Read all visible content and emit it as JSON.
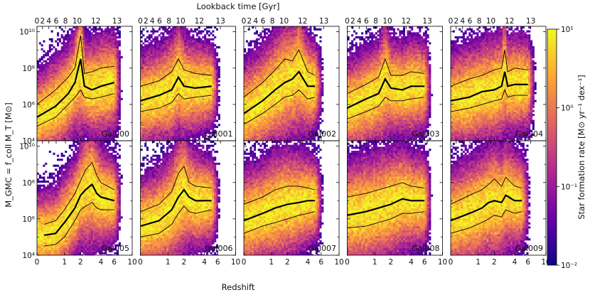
{
  "chart_data": {
    "type": "heatmap",
    "figure": {
      "top_axis_label": "Lookback time [Gyr]",
      "bottom_axis_label": "Redshift",
      "ylabel": "M_GMC = f_coll M_T [M⊙]",
      "colorbar_label": "Star formation rate [M⊙ yr⁻¹ dex⁻¹]",
      "colorbar_range": [
        0.01,
        10
      ],
      "colorbar_ticks": [
        "10¹",
        "10⁰",
        "10⁻¹",
        "10⁻²"
      ],
      "colormap": [
        "#0d0887",
        "#6a00a8",
        "#b12a90",
        "#e16462",
        "#fca636",
        "#f0f921"
      ],
      "line_color": "#000000"
    },
    "xaxis": {
      "range": [
        0,
        10
      ],
      "ticks": [
        "0",
        "1",
        "2",
        "4",
        "6",
        "10"
      ],
      "tick_values": [
        0,
        1,
        2,
        4,
        6,
        10
      ]
    },
    "top_axis": {
      "ticks": [
        "0",
        "2",
        "4",
        "6",
        "8",
        "10",
        "12",
        "13"
      ],
      "tick_redshifts": [
        0,
        0.15,
        0.35,
        0.62,
        1.05,
        1.75,
        3.4,
        6.5
      ]
    },
    "yaxis": {
      "range": [
        4,
        10.3
      ],
      "scale": "log10",
      "ticks": [
        "10⁴",
        "10⁶",
        "10⁸",
        "10¹⁰"
      ],
      "tick_values": [
        4,
        6,
        8,
        10
      ]
    },
    "panels": [
      {
        "name": "Gal000",
        "zmax": 6.0,
        "median": [
          [
            0.0,
            5.3
          ],
          [
            0.6,
            5.9
          ],
          [
            1.2,
            6.6
          ],
          [
            1.6,
            7.2
          ],
          [
            2.0,
            8.5
          ],
          [
            2.3,
            7.0
          ],
          [
            3.0,
            6.8
          ],
          [
            4.0,
            7.0
          ],
          [
            6.0,
            7.2
          ]
        ],
        "upper": [
          [
            0.0,
            6.0
          ],
          [
            0.6,
            6.8
          ],
          [
            1.2,
            7.5
          ],
          [
            1.6,
            8.0
          ],
          [
            2.0,
            9.8
          ],
          [
            2.3,
            7.7
          ],
          [
            3.0,
            7.8
          ],
          [
            4.0,
            8.0
          ],
          [
            6.0,
            8.1
          ]
        ],
        "lower": [
          [
            0.0,
            4.8
          ],
          [
            0.6,
            5.3
          ],
          [
            1.2,
            6.0
          ],
          [
            1.6,
            6.4
          ],
          [
            2.0,
            6.8
          ],
          [
            2.3,
            6.4
          ],
          [
            3.0,
            6.3
          ],
          [
            4.0,
            6.4
          ],
          [
            6.0,
            6.6
          ]
        ]
      },
      {
        "name": "Gal001",
        "zmax": 5.0,
        "median": [
          [
            0.0,
            6.2
          ],
          [
            0.6,
            6.5
          ],
          [
            1.2,
            6.8
          ],
          [
            1.6,
            7.5
          ],
          [
            2.0,
            7.0
          ],
          [
            3.0,
            6.9
          ],
          [
            5.0,
            7.0
          ]
        ],
        "upper": [
          [
            0.0,
            7.0
          ],
          [
            0.6,
            7.3
          ],
          [
            1.2,
            7.8
          ],
          [
            1.6,
            8.5
          ],
          [
            2.0,
            7.9
          ],
          [
            3.0,
            7.7
          ],
          [
            5.0,
            7.6
          ]
        ],
        "lower": [
          [
            0.0,
            5.6
          ],
          [
            0.6,
            5.8
          ],
          [
            1.2,
            6.1
          ],
          [
            1.6,
            6.6
          ],
          [
            2.0,
            6.3
          ],
          [
            3.0,
            6.4
          ],
          [
            5.0,
            6.5
          ]
        ]
      },
      {
        "name": "Gal002",
        "zmax": 5.0,
        "median": [
          [
            0.0,
            5.5
          ],
          [
            0.6,
            6.2
          ],
          [
            1.2,
            6.8
          ],
          [
            1.8,
            7.2
          ],
          [
            2.4,
            7.4
          ],
          [
            3.0,
            7.8
          ],
          [
            4.0,
            7.0
          ],
          [
            5.0,
            7.0
          ]
        ],
        "upper": [
          [
            0.0,
            6.4
          ],
          [
            0.6,
            7.2
          ],
          [
            1.2,
            7.9
          ],
          [
            1.8,
            8.5
          ],
          [
            2.4,
            8.4
          ],
          [
            3.0,
            9.0
          ],
          [
            4.0,
            7.8
          ],
          [
            5.0,
            7.6
          ]
        ],
        "lower": [
          [
            0.0,
            4.9
          ],
          [
            0.6,
            5.5
          ],
          [
            1.2,
            6.0
          ],
          [
            1.8,
            6.4
          ],
          [
            2.4,
            6.5
          ],
          [
            3.0,
            6.8
          ],
          [
            4.0,
            6.3
          ],
          [
            5.0,
            6.4
          ]
        ]
      },
      {
        "name": "Gal003",
        "zmax": 6.0,
        "median": [
          [
            0.0,
            5.8
          ],
          [
            0.6,
            6.3
          ],
          [
            1.2,
            6.6
          ],
          [
            1.6,
            7.4
          ],
          [
            2.0,
            6.9
          ],
          [
            3.0,
            6.8
          ],
          [
            4.0,
            7.0
          ],
          [
            6.0,
            7.0
          ]
        ],
        "upper": [
          [
            0.0,
            6.6
          ],
          [
            0.6,
            7.1
          ],
          [
            1.2,
            7.5
          ],
          [
            1.6,
            8.5
          ],
          [
            2.0,
            7.6
          ],
          [
            3.0,
            7.6
          ],
          [
            4.0,
            7.8
          ],
          [
            6.0,
            7.7
          ]
        ],
        "lower": [
          [
            0.0,
            5.2
          ],
          [
            0.6,
            5.6
          ],
          [
            1.2,
            5.9
          ],
          [
            1.6,
            6.4
          ],
          [
            2.0,
            6.2
          ],
          [
            3.0,
            6.2
          ],
          [
            4.0,
            6.3
          ],
          [
            6.0,
            6.4
          ]
        ]
      },
      {
        "name": "Gal004",
        "zmax": 6.0,
        "median": [
          [
            0.0,
            6.2
          ],
          [
            0.6,
            6.4
          ],
          [
            1.2,
            6.7
          ],
          [
            2.0,
            6.8
          ],
          [
            2.6,
            7.0
          ],
          [
            2.9,
            7.8
          ],
          [
            3.2,
            7.0
          ],
          [
            4.0,
            7.1
          ],
          [
            6.0,
            7.1
          ]
        ],
        "upper": [
          [
            0.0,
            7.0
          ],
          [
            0.6,
            7.4
          ],
          [
            1.2,
            7.6
          ],
          [
            2.0,
            7.9
          ],
          [
            2.6,
            8.0
          ],
          [
            2.9,
            9.0
          ],
          [
            3.2,
            7.8
          ],
          [
            4.0,
            8.0
          ],
          [
            6.0,
            7.9
          ]
        ],
        "lower": [
          [
            0.0,
            5.6
          ],
          [
            0.6,
            5.8
          ],
          [
            1.2,
            6.0
          ],
          [
            2.0,
            6.2
          ],
          [
            2.6,
            6.3
          ],
          [
            2.9,
            6.8
          ],
          [
            3.2,
            6.4
          ],
          [
            4.0,
            6.5
          ],
          [
            6.0,
            6.5
          ]
        ]
      },
      {
        "name": "Gal005",
        "zmax": 6.0,
        "median": [
          [
            0.2,
            5.1
          ],
          [
            0.6,
            5.2
          ],
          [
            1.0,
            5.8
          ],
          [
            1.6,
            6.6
          ],
          [
            2.0,
            7.3
          ],
          [
            2.4,
            7.6
          ],
          [
            3.0,
            7.9
          ],
          [
            3.5,
            7.4
          ],
          [
            4.0,
            7.2
          ],
          [
            6.0,
            7.0
          ]
        ],
        "upper": [
          [
            0.2,
            5.7
          ],
          [
            0.6,
            5.9
          ],
          [
            1.0,
            6.5
          ],
          [
            1.6,
            7.4
          ],
          [
            2.0,
            8.1
          ],
          [
            2.4,
            8.7
          ],
          [
            3.0,
            9.1
          ],
          [
            3.5,
            8.4
          ],
          [
            4.0,
            8.0
          ],
          [
            6.0,
            7.6
          ]
        ],
        "lower": [
          [
            0.2,
            4.5
          ],
          [
            0.6,
            4.6
          ],
          [
            1.0,
            5.0
          ],
          [
            1.6,
            5.9
          ],
          [
            2.0,
            6.5
          ],
          [
            2.4,
            6.7
          ],
          [
            3.0,
            6.9
          ],
          [
            3.5,
            6.6
          ],
          [
            4.0,
            6.5
          ],
          [
            6.0,
            6.5
          ]
        ]
      },
      {
        "name": "Gal006",
        "zmax": 5.0,
        "median": [
          [
            0.0,
            5.6
          ],
          [
            0.6,
            5.9
          ],
          [
            1.2,
            6.5
          ],
          [
            1.6,
            7.2
          ],
          [
            2.0,
            7.6
          ],
          [
            2.4,
            7.2
          ],
          [
            3.0,
            7.0
          ],
          [
            5.0,
            7.0
          ]
        ],
        "upper": [
          [
            0.0,
            6.4
          ],
          [
            0.6,
            6.8
          ],
          [
            1.2,
            7.5
          ],
          [
            1.6,
            8.5
          ],
          [
            2.0,
            8.9
          ],
          [
            2.4,
            8.0
          ],
          [
            3.0,
            7.8
          ],
          [
            5.0,
            7.7
          ]
        ],
        "lower": [
          [
            0.0,
            5.0
          ],
          [
            0.6,
            5.2
          ],
          [
            1.2,
            5.7
          ],
          [
            1.6,
            6.3
          ],
          [
            2.0,
            6.7
          ],
          [
            2.4,
            6.4
          ],
          [
            3.0,
            6.3
          ],
          [
            5.0,
            6.5
          ]
        ]
      },
      {
        "name": "Gal007",
        "zmax": 5.0,
        "median": [
          [
            0.0,
            5.9
          ],
          [
            0.6,
            6.3
          ],
          [
            1.2,
            6.6
          ],
          [
            2.0,
            6.8
          ],
          [
            3.0,
            6.9
          ],
          [
            4.0,
            7.0
          ],
          [
            5.0,
            7.0
          ]
        ],
        "upper": [
          [
            0.0,
            6.8
          ],
          [
            0.6,
            7.2
          ],
          [
            1.2,
            7.6
          ],
          [
            2.0,
            7.8
          ],
          [
            3.0,
            7.8
          ],
          [
            4.0,
            7.7
          ],
          [
            5.0,
            7.6
          ]
        ],
        "lower": [
          [
            0.0,
            5.2
          ],
          [
            0.6,
            5.6
          ],
          [
            1.2,
            5.8
          ],
          [
            2.0,
            6.0
          ],
          [
            3.0,
            6.2
          ],
          [
            4.0,
            6.3
          ],
          [
            5.0,
            6.4
          ]
        ]
      },
      {
        "name": "Gal008",
        "zmax": 6.0,
        "median": [
          [
            0.0,
            6.2
          ],
          [
            0.6,
            6.4
          ],
          [
            1.2,
            6.6
          ],
          [
            2.0,
            6.8
          ],
          [
            3.0,
            7.1
          ],
          [
            4.0,
            7.0
          ],
          [
            6.0,
            7.0
          ]
        ],
        "upper": [
          [
            0.0,
            7.2
          ],
          [
            0.6,
            7.4
          ],
          [
            1.2,
            7.6
          ],
          [
            2.0,
            7.8
          ],
          [
            3.0,
            8.0
          ],
          [
            4.0,
            7.8
          ],
          [
            6.0,
            7.7
          ]
        ],
        "lower": [
          [
            0.0,
            5.5
          ],
          [
            0.6,
            5.6
          ],
          [
            1.2,
            5.8
          ],
          [
            2.0,
            6.0
          ],
          [
            3.0,
            6.3
          ],
          [
            4.0,
            6.3
          ],
          [
            6.0,
            6.4
          ]
        ]
      },
      {
        "name": "Gal009",
        "zmax": 5.0,
        "median": [
          [
            0.0,
            5.9
          ],
          [
            0.6,
            6.3
          ],
          [
            1.2,
            6.6
          ],
          [
            1.6,
            6.9
          ],
          [
            2.0,
            7.0
          ],
          [
            2.6,
            6.9
          ],
          [
            3.0,
            7.3
          ],
          [
            4.0,
            7.0
          ],
          [
            5.0,
            7.0
          ]
        ],
        "upper": [
          [
            0.0,
            6.8
          ],
          [
            0.6,
            7.3
          ],
          [
            1.2,
            7.6
          ],
          [
            1.6,
            7.9
          ],
          [
            2.0,
            8.2
          ],
          [
            2.6,
            7.8
          ],
          [
            3.0,
            8.3
          ],
          [
            4.0,
            7.8
          ],
          [
            5.0,
            7.7
          ]
        ],
        "lower": [
          [
            0.0,
            5.2
          ],
          [
            0.6,
            5.5
          ],
          [
            1.2,
            5.8
          ],
          [
            1.6,
            6.0
          ],
          [
            2.0,
            6.2
          ],
          [
            2.6,
            6.1
          ],
          [
            3.0,
            6.5
          ],
          [
            4.0,
            6.3
          ],
          [
            5.0,
            6.4
          ]
        ]
      }
    ]
  }
}
